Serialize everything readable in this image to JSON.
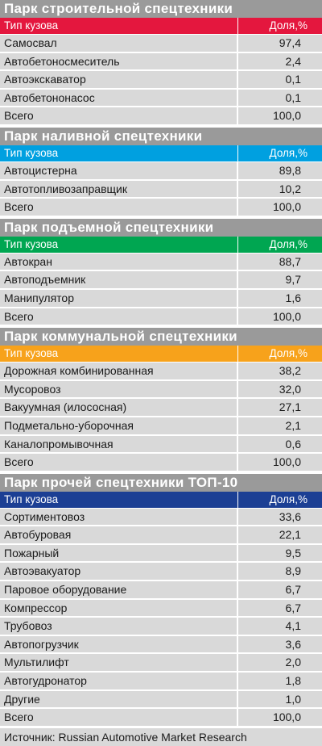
{
  "colors": {
    "construction": "#e4173e",
    "liquid": "#00a0e0",
    "lifting": "#00a651",
    "municipal": "#f7a21b",
    "other": "#1c3f94",
    "title_bg": "#9a9a9a",
    "row_bg": "#d9d9d9"
  },
  "sections": [
    {
      "title": "Парк строительной спецтехники",
      "color_key": "construction",
      "col_type": "Тип кузова",
      "col_share": "Доля,%",
      "rows": [
        {
          "name": "Самосвал",
          "value": "97,4"
        },
        {
          "name": "Автобетоносмеситель",
          "value": "2,4"
        },
        {
          "name": "Автоэкскаватор",
          "value": "0,1"
        },
        {
          "name": "Автобетононасос",
          "value": "0,1"
        },
        {
          "name": "Всего",
          "value": "100,0"
        }
      ]
    },
    {
      "title": "Парк наливной спецтехники",
      "color_key": "liquid",
      "col_type": "Тип кузова",
      "col_share": "Доля,%",
      "rows": [
        {
          "name": "Автоцистерна",
          "value": "89,8"
        },
        {
          "name": "Автотопливозаправщик",
          "value": "10,2"
        },
        {
          "name": "Всего",
          "value": "100,0"
        }
      ]
    },
    {
      "title": "Парк подъемной спецтехники",
      "color_key": "lifting",
      "col_type": "Тип кузова",
      "col_share": "Доля,%",
      "rows": [
        {
          "name": "Автокран",
          "value": "88,7"
        },
        {
          "name": "Автоподъемник",
          "value": "9,7"
        },
        {
          "name": "Манипулятор",
          "value": "1,6"
        },
        {
          "name": "Всего",
          "value": "100,0"
        }
      ]
    },
    {
      "title": "Парк коммунальной спецтехники",
      "color_key": "municipal",
      "col_type": "Тип кузова",
      "col_share": "Доля,%",
      "rows": [
        {
          "name": "Дорожная комбинированная",
          "value": "38,2"
        },
        {
          "name": "Мусоровоз",
          "value": "32,0"
        },
        {
          "name": "Вакуумная (илососная)",
          "value": "27,1"
        },
        {
          "name": "Подметально-уборочная",
          "value": "2,1"
        },
        {
          "name": "Каналопромывочная",
          "value": "0,6"
        },
        {
          "name": "Всего",
          "value": "100,0"
        }
      ]
    },
    {
      "title": "Парк прочей спецтехники ТОП-10",
      "color_key": "other",
      "col_type": "Тип кузова",
      "col_share": "Доля,%",
      "rows": [
        {
          "name": "Сортиментовоз",
          "value": "33,6"
        },
        {
          "name": "Автобуровая",
          "value": "22,1"
        },
        {
          "name": "Пожарный",
          "value": "9,5"
        },
        {
          "name": "Автоэвакуатор",
          "value": "8,9"
        },
        {
          "name": "Паровое оборудование",
          "value": "6,7"
        },
        {
          "name": "Компрессор",
          "value": "6,7"
        },
        {
          "name": "Трубовоз",
          "value": "4,1"
        },
        {
          "name": "Автопогрузчик",
          "value": "3,6"
        },
        {
          "name": "Мультилифт",
          "value": "2,0"
        },
        {
          "name": "Автогудронатор",
          "value": "1,8"
        },
        {
          "name": "Другие",
          "value": "1,0"
        },
        {
          "name": "Всего",
          "value": "100,0"
        }
      ]
    }
  ],
  "source": "Источник: Russian Automotive Market Research"
}
